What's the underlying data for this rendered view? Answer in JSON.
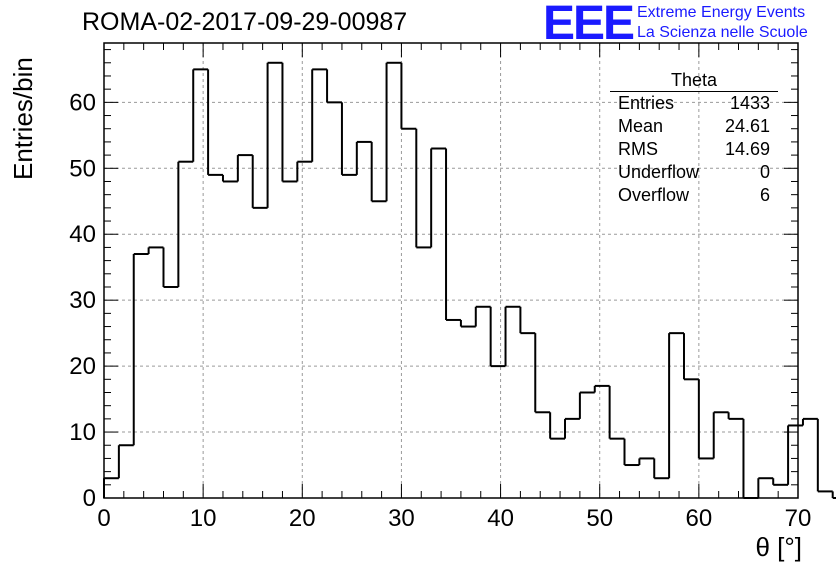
{
  "header": {
    "title": "ROMA-02-2017-09-29-00987"
  },
  "logo": {
    "mark": "EEE",
    "line1": "Extreme Energy Events",
    "line2": "La Scienza nelle Scuole",
    "color": "#1a1aff"
  },
  "stats_box": {
    "name": "Theta",
    "rows": [
      {
        "label": "Entries",
        "value": "1433"
      },
      {
        "label": "Mean",
        "value": "24.61"
      },
      {
        "label": "RMS",
        "value": "14.69"
      },
      {
        "label": "Underflow",
        "value": "0"
      },
      {
        "label": "Overflow",
        "value": "6"
      }
    ]
  },
  "chart_data": {
    "type": "histogram",
    "xlabel": "θ [°]",
    "ylabel": "Entries/bin",
    "xlim": [
      0,
      70
    ],
    "ylim": [
      0,
      69
    ],
    "bin_width": 1.5,
    "bin_start": 0,
    "values": [
      3,
      8,
      37,
      38,
      32,
      51,
      65,
      49,
      48,
      52,
      44,
      66,
      48,
      51,
      65,
      60,
      49,
      54,
      45,
      66,
      56,
      38,
      53,
      27,
      26,
      29,
      20,
      29,
      25,
      13,
      9,
      12,
      16,
      17,
      9,
      5,
      6,
      3,
      25,
      18,
      6,
      13,
      12,
      0,
      3,
      2,
      11,
      12,
      1,
      0
    ],
    "x_ticks": [
      0,
      10,
      20,
      30,
      40,
      50,
      60,
      70
    ],
    "y_ticks": [
      0,
      10,
      20,
      30,
      40,
      50,
      60
    ],
    "grid": true,
    "line_color": "#000000"
  }
}
